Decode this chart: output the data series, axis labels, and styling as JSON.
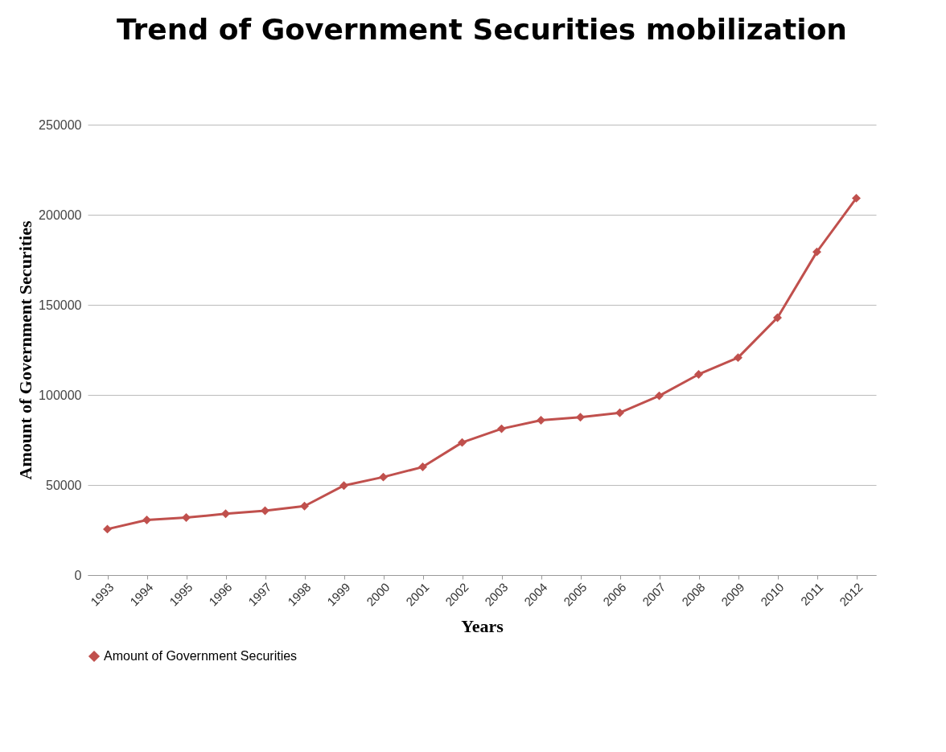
{
  "chart_data": {
    "type": "line",
    "title": "Trend of Government Securities mobilization",
    "xlabel": "Years",
    "ylabel": "Amount of Government Securities",
    "categories": [
      "1993",
      "1994",
      "1995",
      "1996",
      "1997",
      "1998",
      "1999",
      "2000",
      "2001",
      "2002",
      "2003",
      "2004",
      "2005",
      "2006",
      "2007",
      "2008",
      "2009",
      "2010",
      "2011",
      "2012"
    ],
    "series": [
      {
        "name": "Amount of Government Securities",
        "color": "#c0504d",
        "values": [
          25500,
          30600,
          31900,
          34000,
          35700,
          38300,
          49700,
          54400,
          60000,
          73600,
          81200,
          85900,
          87600,
          90100,
          99500,
          111400,
          120700,
          142900,
          179400,
          209200
        ]
      }
    ],
    "ylim": [
      0,
      250000
    ],
    "yticks": [
      0,
      50000,
      100000,
      150000,
      200000,
      250000
    ],
    "grid": "y",
    "legend": "bottom",
    "marker": "diamond",
    "line_style": "solid"
  }
}
